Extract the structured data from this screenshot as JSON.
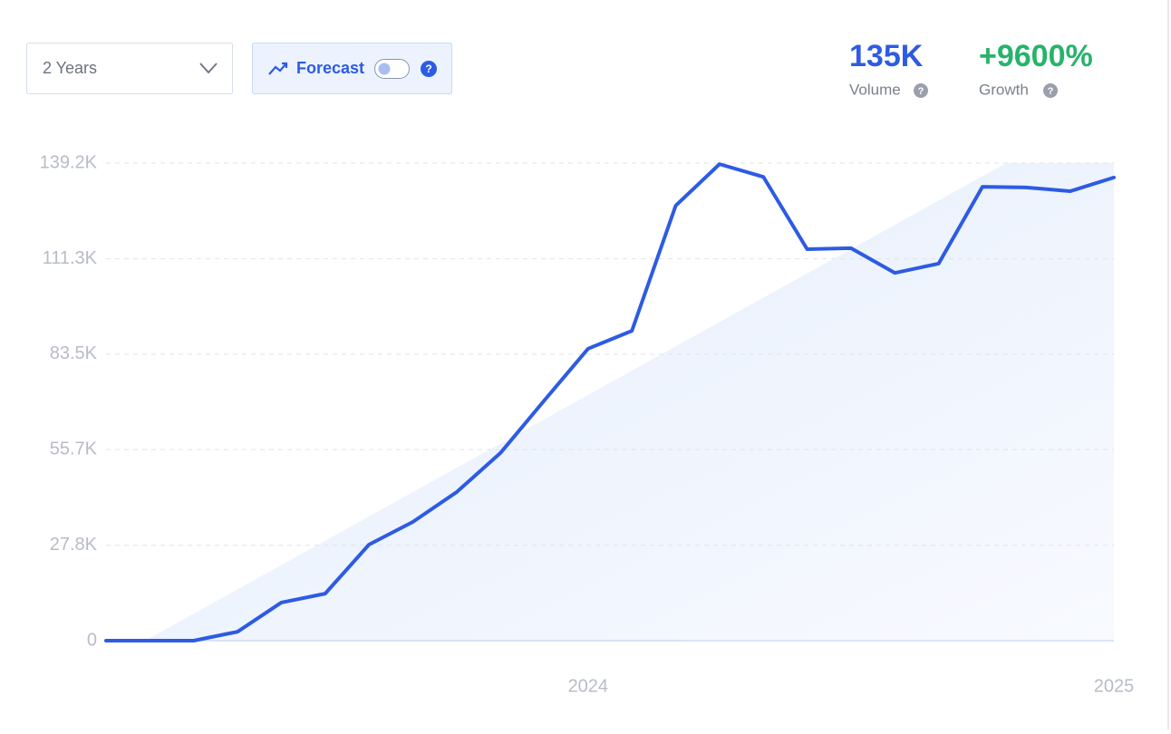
{
  "controls": {
    "timeframe": "2 Years",
    "forecast": "Forecast",
    "help_icon": "?"
  },
  "metrics": [
    {
      "value": "135K",
      "label": "Volume"
    },
    {
      "value": "+9600%",
      "label": "Growth"
    }
  ],
  "chart_data": {
    "type": "line",
    "categories": [
      null,
      null,
      null,
      null,
      null,
      null,
      null,
      null,
      null,
      null,
      null,
      "2024",
      null,
      null,
      null,
      null,
      null,
      null,
      null,
      null,
      null,
      null,
      null,
      "2025"
    ],
    "series": [
      {
        "color": "#2d5be3",
        "values": [
          0,
          0,
          0,
          2.6,
          11.1,
          13.7,
          28.0,
          34.6,
          43.3,
          54.7,
          70.0,
          85.1,
          90.3,
          126.8,
          138.9,
          135.2,
          114.1,
          114.4,
          107.2,
          109.9,
          132.3,
          132.1,
          131.0,
          135.0
        ]
      }
    ],
    "ylim": [
      0,
      139.2
    ],
    "yticks": [
      0,
      {
        "value": 27.8,
        "label": "27.8K"
      },
      {
        "value": 55.7,
        "label": "55.7K"
      },
      {
        "value": 83.5,
        "label": "83.5K"
      },
      {
        "value": 111.3,
        "label": "111.3K"
      },
      {
        "value": 139.2,
        "label": "139.2K"
      }
    ],
    "grid": true
  }
}
